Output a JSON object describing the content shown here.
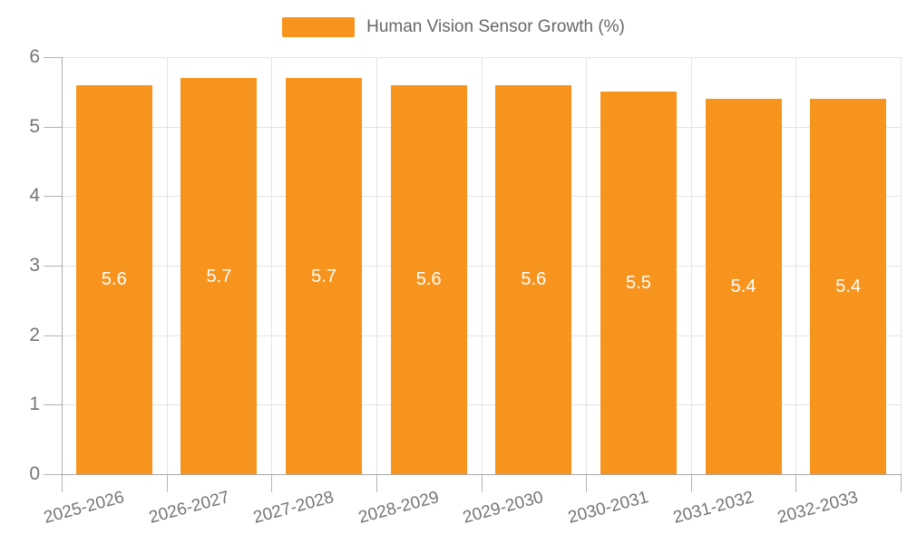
{
  "legend": {
    "label": "Human Vision Sensor Growth (%)",
    "swatch_color": "#F7941E"
  },
  "chart_data": {
    "type": "bar",
    "title": "Human Vision Sensor Growth (%)",
    "series_name": "Human Vision Sensor Growth (%)",
    "categories": [
      "2025-2026",
      "2026-2027",
      "2027-2028",
      "2028-2029",
      "2029-2030",
      "2030-2031",
      "2031-2032",
      "2032-2033"
    ],
    "values": [
      5.6,
      5.7,
      5.7,
      5.6,
      5.6,
      5.5,
      5.4,
      5.4
    ],
    "value_labels": [
      "5.6",
      "5.7",
      "5.7",
      "5.6",
      "5.6",
      "5.5",
      "5.4",
      "5.4"
    ],
    "xlabel": "",
    "ylabel": "",
    "ylim": [
      0,
      6
    ],
    "yticks": [
      0,
      1,
      2,
      3,
      4,
      5,
      6
    ],
    "grid": true,
    "legend_position": "top",
    "x_label_rotation_deg": -15,
    "bar_color": "#F7941E",
    "value_label_color": "#FFFFFF",
    "axis_color": "#A9A9A9",
    "grid_color": "#E4E4E4",
    "tick_color": "#B5B5B5",
    "tick_label_color": "#757575"
  }
}
